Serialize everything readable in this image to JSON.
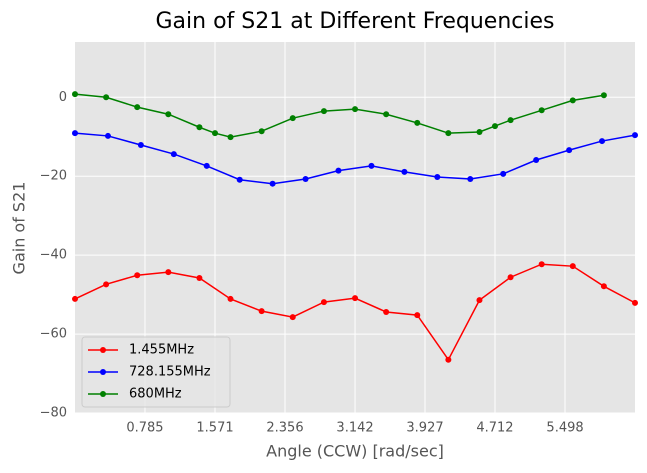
{
  "chart_data": {
    "type": "line",
    "title": "Gain of S21 at Different Frequencies",
    "xlabel": "Angle (CCW) [rad/sec]",
    "ylabel": "Gain of S21",
    "xlim": [
      0,
      6.283
    ],
    "ylim": [
      -80,
      14
    ],
    "xticks": [
      0.785,
      1.571,
      2.356,
      3.142,
      3.927,
      4.712,
      5.498
    ],
    "yticks": [
      {
        "value": -80,
        "label": "−80"
      },
      {
        "value": -60,
        "label": "−60"
      },
      {
        "value": -40,
        "label": "−40"
      },
      {
        "value": -20,
        "label": "−20"
      },
      0
    ],
    "grid": true,
    "legend": "lower left",
    "series": [
      {
        "name": "1.455MHz",
        "color": "#ff0000",
        "x": [
          0,
          0.349,
          0.698,
          1.047,
          1.396,
          1.745,
          2.094,
          2.443,
          2.793,
          3.142,
          3.491,
          3.84,
          4.189,
          4.538,
          4.887,
          5.236,
          5.585,
          5.934,
          6.283
        ],
        "values": [
          -51.1,
          -47.4,
          -45.1,
          -44.3,
          -45.8,
          -51.1,
          -54.2,
          -55.7,
          -51.9,
          -50.9,
          -54.4,
          -55.2,
          -66.5,
          -51.4,
          -45.6,
          -42.3,
          -42.8,
          -47.9,
          -52.1
        ]
      },
      {
        "name": "728.155MHz",
        "color": "#0000ff",
        "x": [
          0,
          0.37,
          0.739,
          1.109,
          1.478,
          1.848,
          2.217,
          2.587,
          2.956,
          3.326,
          3.696,
          4.065,
          4.435,
          4.804,
          5.174,
          5.544,
          5.913,
          6.283
        ],
        "values": [
          -9.1,
          -9.8,
          -12.1,
          -14.4,
          -17.4,
          -20.9,
          -21.9,
          -20.7,
          -18.6,
          -17.4,
          -18.9,
          -20.2,
          -20.7,
          -19.4,
          -15.9,
          -13.4,
          -11.1,
          -9.6
        ]
      },
      {
        "name": "680MHz",
        "color": "#008000",
        "x": [
          0,
          0.349,
          0.698,
          1.047,
          1.396,
          1.571,
          1.745,
          2.094,
          2.443,
          2.793,
          3.142,
          3.491,
          3.84,
          4.189,
          4.538,
          4.712,
          4.887,
          5.236,
          5.585,
          5.934
        ],
        "values": [
          0.8,
          0,
          -2.5,
          -4.3,
          -7.6,
          -9.1,
          -10.1,
          -8.6,
          -5.3,
          -3.5,
          -3.0,
          -4.3,
          -6.5,
          -9.1,
          -8.8,
          -7.3,
          -5.8,
          -3.3,
          -0.8,
          0.5
        ]
      }
    ]
  }
}
